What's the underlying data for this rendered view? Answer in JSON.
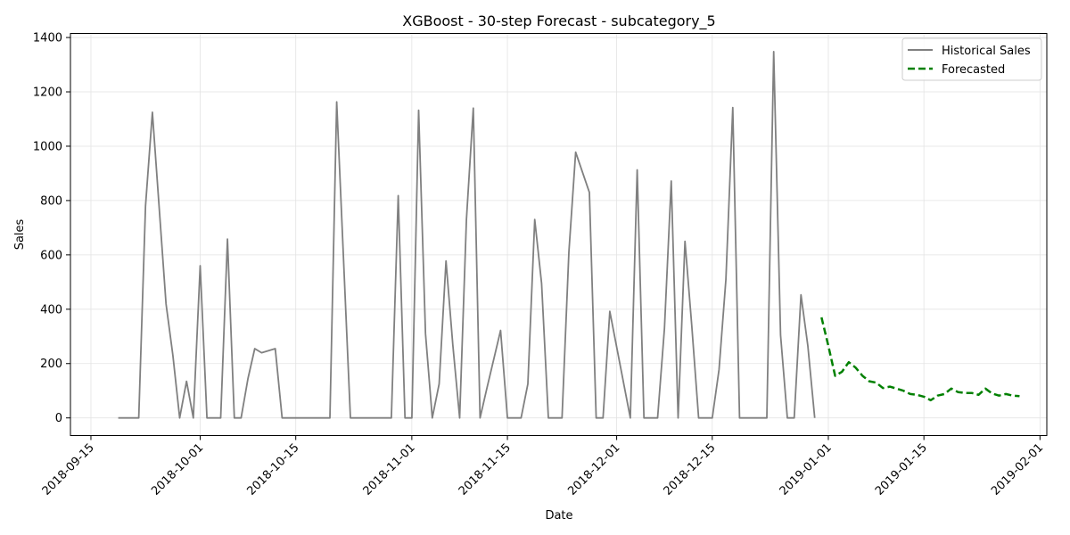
{
  "chart_data": {
    "type": "line",
    "title": "XGBoost - 30-step Forecast - subcategory_5",
    "xlabel": "Date",
    "ylabel": "Sales",
    "xlim": [
      "2018-09-12",
      "2019-02-02"
    ],
    "ylim": [
      -65,
      1415
    ],
    "grid": true,
    "legend_position": "top-right",
    "x_ticks": [
      "2018-09-15",
      "2018-10-01",
      "2018-10-15",
      "2018-11-01",
      "2018-11-15",
      "2018-12-01",
      "2018-12-15",
      "2019-01-01",
      "2019-01-15",
      "2019-02-01"
    ],
    "y_ticks": [
      0,
      200,
      400,
      600,
      800,
      1000,
      1200,
      1400
    ],
    "series": [
      {
        "name": "Historical Sales",
        "color": "#808080",
        "style": "solid",
        "points": [
          [
            "2018-09-19",
            0
          ],
          [
            "2018-09-20",
            0
          ],
          [
            "2018-09-21",
            0
          ],
          [
            "2018-09-22",
            0
          ],
          [
            "2018-09-23",
            780
          ],
          [
            "2018-09-24",
            1125
          ],
          [
            "2018-09-26",
            420
          ],
          [
            "2018-09-27",
            230
          ],
          [
            "2018-09-28",
            0
          ],
          [
            "2018-09-29",
            135
          ],
          [
            "2018-09-30",
            0
          ],
          [
            "2018-10-01",
            560
          ],
          [
            "2018-10-02",
            0
          ],
          [
            "2018-10-04",
            0
          ],
          [
            "2018-10-05",
            658
          ],
          [
            "2018-10-06",
            0
          ],
          [
            "2018-10-07",
            0
          ],
          [
            "2018-10-08",
            145
          ],
          [
            "2018-10-09",
            255
          ],
          [
            "2018-10-10",
            240
          ],
          [
            "2018-10-12",
            255
          ],
          [
            "2018-10-13",
            0
          ],
          [
            "2018-10-20",
            0
          ],
          [
            "2018-10-21",
            1163
          ],
          [
            "2018-10-23",
            0
          ],
          [
            "2018-10-29",
            0
          ],
          [
            "2018-10-30",
            818
          ],
          [
            "2018-10-31",
            0
          ],
          [
            "2018-11-01",
            0
          ],
          [
            "2018-11-02",
            1132
          ],
          [
            "2018-11-03",
            310
          ],
          [
            "2018-11-04",
            0
          ],
          [
            "2018-11-05",
            125
          ],
          [
            "2018-11-06",
            578
          ],
          [
            "2018-11-07",
            270
          ],
          [
            "2018-11-08",
            0
          ],
          [
            "2018-11-09",
            730
          ],
          [
            "2018-11-10",
            1140
          ],
          [
            "2018-11-11",
            0
          ],
          [
            "2018-11-12",
            110
          ],
          [
            "2018-11-14",
            322
          ],
          [
            "2018-11-15",
            0
          ],
          [
            "2018-11-17",
            0
          ],
          [
            "2018-11-18",
            125
          ],
          [
            "2018-11-19",
            730
          ],
          [
            "2018-11-20",
            495
          ],
          [
            "2018-11-21",
            0
          ],
          [
            "2018-11-23",
            0
          ],
          [
            "2018-11-24",
            610
          ],
          [
            "2018-11-25",
            978
          ],
          [
            "2018-11-27",
            830
          ],
          [
            "2018-11-28",
            0
          ],
          [
            "2018-11-29",
            0
          ],
          [
            "2018-11-30",
            392
          ],
          [
            "2018-12-03",
            0
          ],
          [
            "2018-12-04",
            913
          ],
          [
            "2018-12-05",
            0
          ],
          [
            "2018-12-07",
            0
          ],
          [
            "2018-12-08",
            330
          ],
          [
            "2018-12-09",
            872
          ],
          [
            "2018-12-10",
            0
          ],
          [
            "2018-12-11",
            650
          ],
          [
            "2018-12-12",
            340
          ],
          [
            "2018-12-13",
            0
          ],
          [
            "2018-12-15",
            0
          ],
          [
            "2018-12-16",
            178
          ],
          [
            "2018-12-17",
            510
          ],
          [
            "2018-12-18",
            1142
          ],
          [
            "2018-12-19",
            0
          ],
          [
            "2018-12-23",
            0
          ],
          [
            "2018-12-24",
            1348
          ],
          [
            "2018-12-25",
            305
          ],
          [
            "2018-12-26",
            0
          ],
          [
            "2018-12-27",
            0
          ],
          [
            "2018-12-28",
            453
          ],
          [
            "2018-12-29",
            265
          ],
          [
            "2018-12-30",
            0
          ]
        ]
      },
      {
        "name": "Forecasted",
        "color": "#008000",
        "style": "dashed",
        "points": [
          [
            "2018-12-31",
            370
          ],
          [
            "2019-01-01",
            265
          ],
          [
            "2019-01-02",
            155
          ],
          [
            "2019-01-03",
            170
          ],
          [
            "2019-01-04",
            205
          ],
          [
            "2019-01-05",
            185
          ],
          [
            "2019-01-06",
            155
          ],
          [
            "2019-01-07",
            135
          ],
          [
            "2019-01-08",
            130
          ],
          [
            "2019-01-09",
            110
          ],
          [
            "2019-01-10",
            115
          ],
          [
            "2019-01-11",
            108
          ],
          [
            "2019-01-12",
            100
          ],
          [
            "2019-01-13",
            88
          ],
          [
            "2019-01-14",
            85
          ],
          [
            "2019-01-15",
            78
          ],
          [
            "2019-01-16",
            65
          ],
          [
            "2019-01-17",
            82
          ],
          [
            "2019-01-18",
            88
          ],
          [
            "2019-01-19",
            108
          ],
          [
            "2019-01-20",
            95
          ],
          [
            "2019-01-21",
            92
          ],
          [
            "2019-01-22",
            92
          ],
          [
            "2019-01-23",
            85
          ],
          [
            "2019-01-24",
            108
          ],
          [
            "2019-01-25",
            90
          ],
          [
            "2019-01-26",
            82
          ],
          [
            "2019-01-27",
            88
          ],
          [
            "2019-01-28",
            82
          ],
          [
            "2019-01-29",
            80
          ]
        ]
      }
    ]
  }
}
